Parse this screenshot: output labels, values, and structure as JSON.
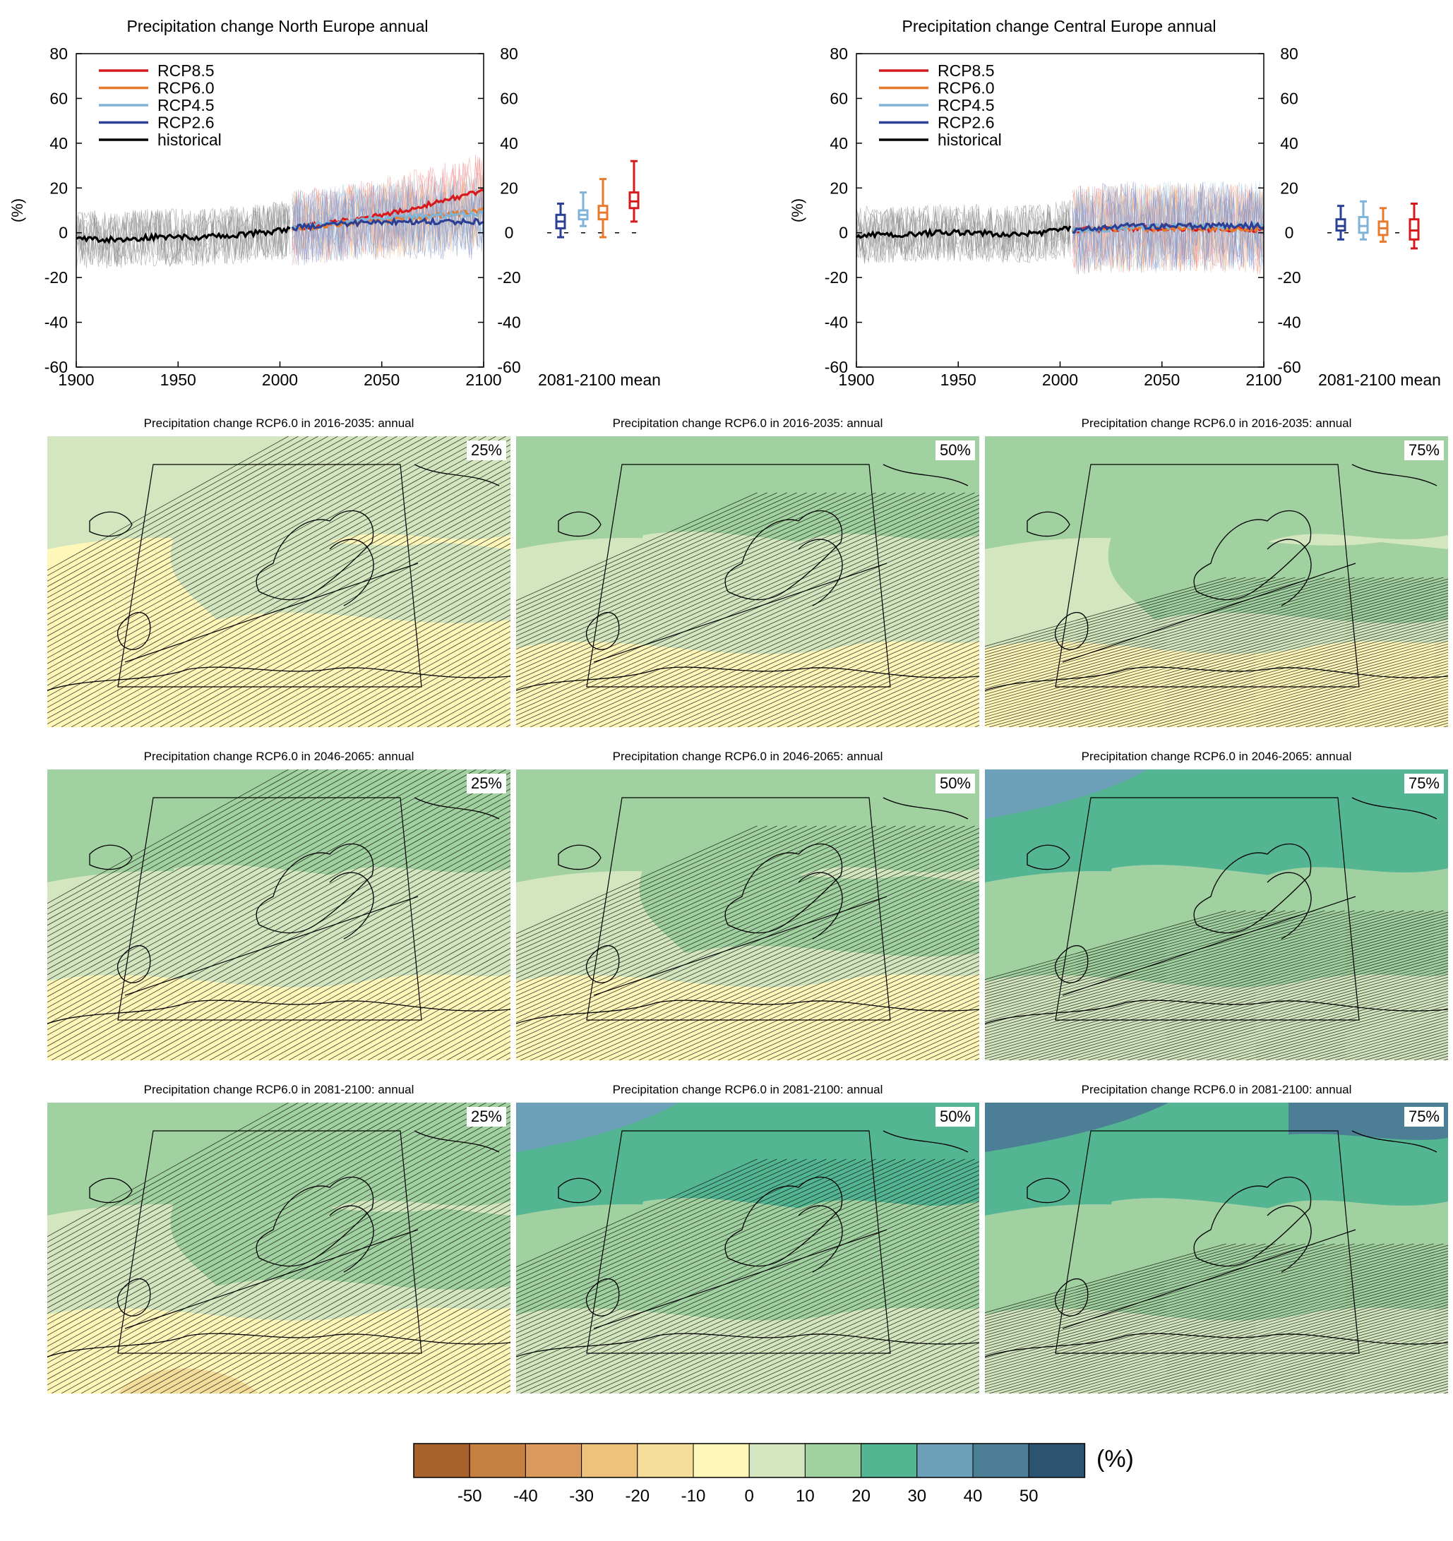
{
  "time_series": [
    {
      "title": "Precipitation change North Europe annual",
      "ylabel": "(%)",
      "boxplot_label": "2081-2100 mean",
      "x_ticks": [
        "1900",
        "1950",
        "2000",
        "2050",
        "2100"
      ],
      "y_ticks": [
        "80",
        "60",
        "40",
        "20",
        "0",
        "-20",
        "-40",
        "-60"
      ],
      "legend": [
        "RCP8.5",
        "RCP6.0",
        "RCP4.5",
        "RCP2.6",
        "historical"
      ]
    },
    {
      "title": "Precipitation change Central Europe annual",
      "ylabel": "(%)",
      "boxplot_label": "2081-2100 mean",
      "x_ticks": [
        "1900",
        "1950",
        "2000",
        "2050",
        "2100"
      ],
      "y_ticks": [
        "80",
        "60",
        "40",
        "20",
        "0",
        "-20",
        "-40",
        "-60"
      ],
      "legend": [
        "RCP8.5",
        "RCP6.0",
        "RCP4.5",
        "RCP2.6",
        "historical"
      ]
    }
  ],
  "maps": {
    "rows": [
      {
        "titles": [
          "Precipitation change RCP6.0 in 2016-2035: annual",
          "Precipitation change RCP6.0 in 2016-2035: annual",
          "Precipitation change RCP6.0 in 2016-2035: annual"
        ],
        "percentiles": [
          "25%",
          "50%",
          "75%"
        ]
      },
      {
        "titles": [
          "Precipitation change RCP6.0 in 2046-2065: annual",
          "Precipitation change RCP6.0 in 2046-2065: annual",
          "Precipitation change RCP6.0 in 2046-2065: annual"
        ],
        "percentiles": [
          "25%",
          "50%",
          "75%"
        ]
      },
      {
        "titles": [
          "Precipitation change RCP6.0 in 2081-2100: annual",
          "Precipitation change RCP6.0 in 2081-2100: annual",
          "Precipitation change RCP6.0 in 2081-2100: annual"
        ],
        "percentiles": [
          "25%",
          "50%",
          "75%"
        ]
      }
    ]
  },
  "colorbar": {
    "unit": "(%)",
    "ticks": [
      "-50",
      "-40",
      "-30",
      "-20",
      "-10",
      "0",
      "10",
      "20",
      "30",
      "40",
      "50"
    ],
    "colors": [
      "#a9622b",
      "#c68040",
      "#d99a5c",
      "#eec27a",
      "#f4dc9a",
      "#fff7b9",
      "#d3e6bf",
      "#a1d1a0",
      "#53b592",
      "#6ca1b9",
      "#4c7e96",
      "#2b5470"
    ]
  },
  "chart_data": [
    {
      "type": "line",
      "title": "Precipitation change North Europe annual",
      "ylabel": "(%)",
      "xlim": [
        1900,
        2100
      ],
      "ylim": [
        -60,
        80
      ],
      "series": [
        {
          "name": "historical",
          "color": "#000000",
          "x": [
            1900,
            1920,
            1940,
            1960,
            1980,
            2000,
            2005
          ],
          "values": [
            -3,
            -3,
            -2,
            -2,
            -1,
            1,
            2
          ]
        },
        {
          "name": "RCP8.5",
          "color": "#d7191c",
          "x": [
            2006,
            2030,
            2060,
            2080,
            2100
          ],
          "values": [
            2,
            5,
            10,
            14,
            19
          ]
        },
        {
          "name": "RCP6.0",
          "color": "#e87a2e",
          "x": [
            2006,
            2030,
            2060,
            2080,
            2100
          ],
          "values": [
            2,
            4,
            6,
            8,
            10
          ]
        },
        {
          "name": "RCP4.5",
          "color": "#7fb3d8",
          "x": [
            2006,
            2030,
            2060,
            2080,
            2100
          ],
          "values": [
            2,
            5,
            7,
            8,
            9
          ]
        },
        {
          "name": "RCP2.6",
          "color": "#2b3f94",
          "x": [
            2006,
            2030,
            2060,
            2080,
            2100
          ],
          "values": [
            2,
            4,
            5,
            5,
            5
          ]
        }
      ],
      "boxplots": [
        {
          "name": "RCP2.6",
          "color": "#2b3f94",
          "min": -2,
          "q1": 2,
          "median": 5,
          "q3": 8,
          "max": 13
        },
        {
          "name": "RCP4.5",
          "color": "#7fb3d8",
          "min": 3,
          "q1": 6,
          "median": 8,
          "q3": 10,
          "max": 18
        },
        {
          "name": "RCP6.0",
          "color": "#e87a2e",
          "min": -2,
          "q1": 6,
          "median": 9,
          "q3": 12,
          "max": 24
        },
        {
          "name": "RCP8.5",
          "color": "#d7191c",
          "min": 5,
          "q1": 11,
          "median": 14,
          "q3": 18,
          "max": 32
        }
      ]
    },
    {
      "type": "line",
      "title": "Precipitation change Central Europe annual",
      "ylabel": "(%)",
      "xlim": [
        1900,
        2100
      ],
      "ylim": [
        -60,
        80
      ],
      "series": [
        {
          "name": "historical",
          "color": "#000000",
          "x": [
            1900,
            1920,
            1940,
            1960,
            1980,
            2000,
            2005
          ],
          "values": [
            -1,
            -1,
            0,
            0,
            -1,
            1,
            2
          ]
        },
        {
          "name": "RCP8.5",
          "color": "#d7191c",
          "x": [
            2006,
            2030,
            2060,
            2080,
            2100
          ],
          "values": [
            1,
            2,
            2,
            2,
            1
          ]
        },
        {
          "name": "RCP6.0",
          "color": "#e87a2e",
          "x": [
            2006,
            2030,
            2060,
            2080,
            2100
          ],
          "values": [
            1,
            2,
            2,
            2,
            2
          ]
        },
        {
          "name": "RCP4.5",
          "color": "#7fb3d8",
          "x": [
            2006,
            2030,
            2060,
            2080,
            2100
          ],
          "values": [
            1,
            2,
            3,
            3,
            3
          ]
        },
        {
          "name": "RCP2.6",
          "color": "#2b3f94",
          "x": [
            2006,
            2030,
            2060,
            2080,
            2100
          ],
          "values": [
            1,
            3,
            3,
            3,
            3
          ]
        }
      ],
      "boxplots": [
        {
          "name": "RCP2.6",
          "color": "#2b3f94",
          "min": -3,
          "q1": 1,
          "median": 3,
          "q3": 6,
          "max": 12
        },
        {
          "name": "RCP4.5",
          "color": "#7fb3d8",
          "min": -3,
          "q1": 0,
          "median": 3,
          "q3": 7,
          "max": 14
        },
        {
          "name": "RCP6.0",
          "color": "#e87a2e",
          "min": -4,
          "q1": -1,
          "median": 2,
          "q3": 5,
          "max": 11
        },
        {
          "name": "RCP8.5",
          "color": "#d7191c",
          "min": -7,
          "q1": -3,
          "median": 1,
          "q3": 6,
          "max": 13
        }
      ]
    }
  ]
}
